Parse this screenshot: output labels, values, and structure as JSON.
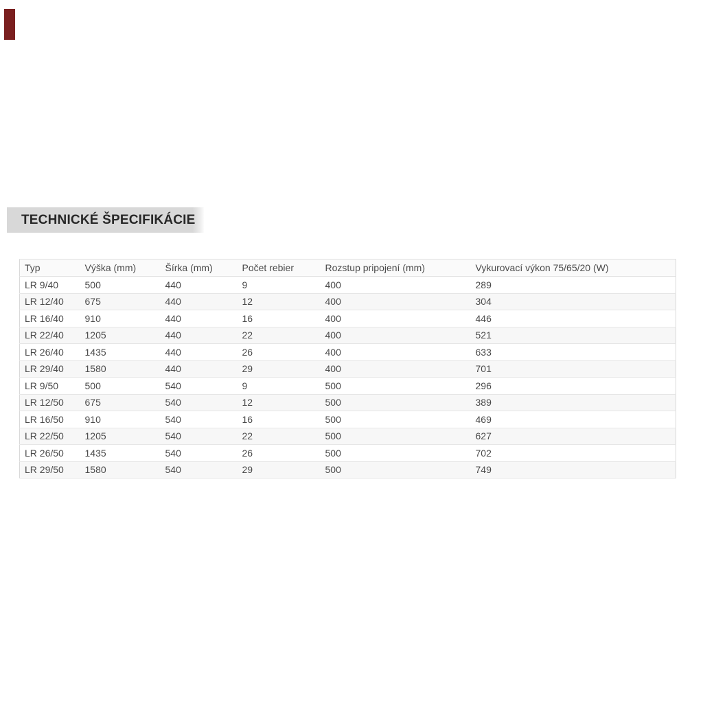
{
  "accent": {
    "color": "#7a1f1f"
  },
  "section": {
    "title": "TECHNICKÉ ŠPECIFIKÁCIE",
    "title_bg_color": "#d8d8d8"
  },
  "table": {
    "columns": [
      "Typ",
      "Výška (mm)",
      "Šírka (mm)",
      "Počet rebier",
      "Rozstup pripojení (mm)",
      "Vykurovací výkon 75/65/20 (W)"
    ],
    "rows": [
      [
        "LR 9/40",
        "500",
        "440",
        "9",
        "400",
        "289"
      ],
      [
        "LR 12/40",
        "675",
        "440",
        "12",
        "400",
        "304"
      ],
      [
        "LR 16/40",
        "910",
        "440",
        "16",
        "400",
        "446"
      ],
      [
        "LR 22/40",
        "1205",
        "440",
        "22",
        "400",
        "521"
      ],
      [
        "LR 26/40",
        "1435",
        "440",
        "26",
        "400",
        "633"
      ],
      [
        "LR 29/40",
        "1580",
        "440",
        "29",
        "400",
        "701"
      ],
      [
        "LR 9/50",
        "500",
        "540",
        "9",
        "500",
        "296"
      ],
      [
        "LR 12/50",
        "675",
        "540",
        "12",
        "500",
        "389"
      ],
      [
        "LR 16/50",
        "910",
        "540",
        "16",
        "500",
        "469"
      ],
      [
        "LR 22/50",
        "1205",
        "540",
        "22",
        "500",
        "627"
      ],
      [
        "LR 26/50",
        "1435",
        "540",
        "26",
        "500",
        "702"
      ],
      [
        "LR 29/50",
        "1580",
        "540",
        "29",
        "500",
        "749"
      ]
    ]
  }
}
